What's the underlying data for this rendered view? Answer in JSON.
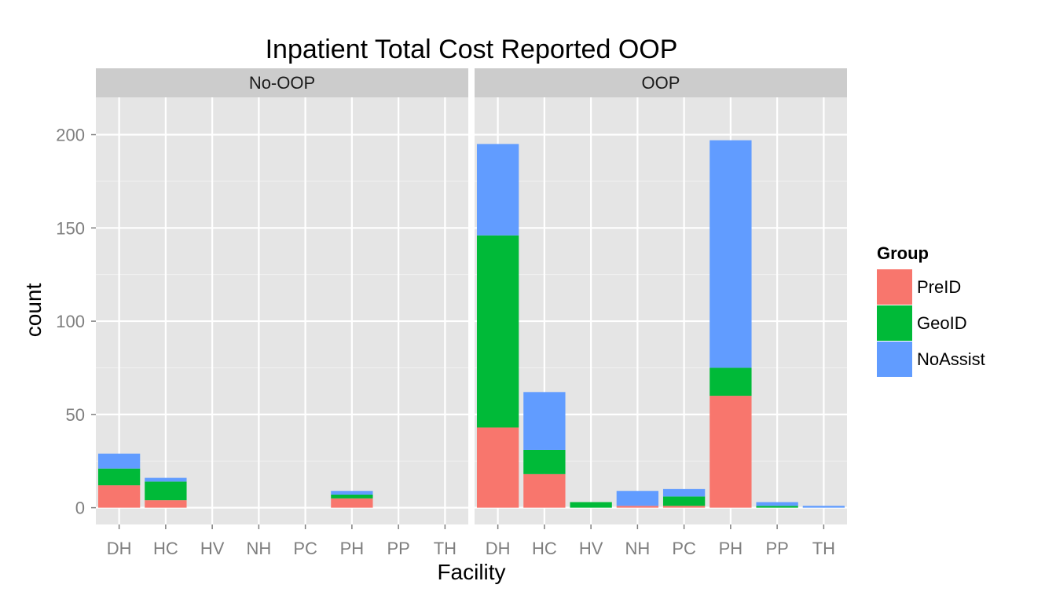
{
  "chart_data": {
    "type": "bar",
    "stacked": true,
    "title": "Inpatient Total Cost Reported OOP",
    "xlabel": "Facility",
    "ylabel": "count",
    "ylim": [
      -9,
      220
    ],
    "yticks": [
      0,
      50,
      100,
      150,
      200
    ],
    "grid": true,
    "categories": [
      "DH",
      "HC",
      "HV",
      "NH",
      "PC",
      "PH",
      "PP",
      "TH"
    ],
    "legend": {
      "title": "Group",
      "position": "right",
      "entries": [
        {
          "name": "PreID",
          "color": "#F8766D"
        },
        {
          "name": "GeoID",
          "color": "#00BA38"
        },
        {
          "name": "NoAssist",
          "color": "#619CFF"
        }
      ]
    },
    "panels": [
      {
        "label": "No-OOP",
        "series": [
          {
            "name": "PreID",
            "values": [
              12,
              4,
              0,
              0,
              0,
              5,
              0,
              0
            ]
          },
          {
            "name": "GeoID",
            "values": [
              9,
              10,
              0,
              0,
              0,
              2,
              0,
              0
            ]
          },
          {
            "name": "NoAssist",
            "values": [
              8,
              2,
              0,
              0,
              0,
              2,
              0,
              0
            ]
          }
        ]
      },
      {
        "label": "OOP",
        "series": [
          {
            "name": "PreID",
            "values": [
              43,
              18,
              0,
              1,
              1,
              60,
              0,
              0
            ]
          },
          {
            "name": "GeoID",
            "values": [
              103,
              13,
              3,
              0,
              5,
              15,
              1,
              0
            ]
          },
          {
            "name": "NoAssist",
            "values": [
              49,
              31,
              0,
              8,
              4,
              122,
              2,
              1
            ]
          }
        ]
      }
    ]
  }
}
